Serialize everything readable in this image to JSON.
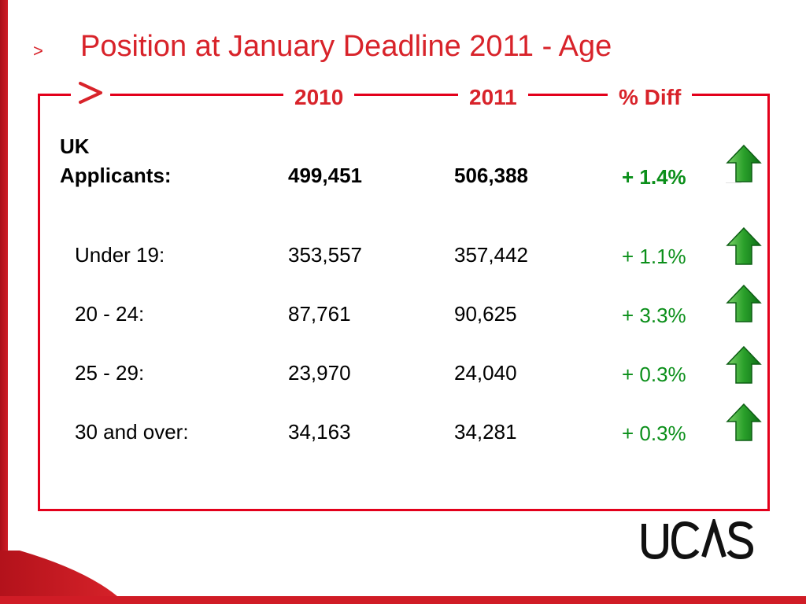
{
  "slide": {
    "bullet": ">",
    "title": "Position at January Deadline 2011 - Age"
  },
  "table": {
    "headers": {
      "col_2010": "2010",
      "col_2011": "2011",
      "col_diff": "% Diff"
    },
    "summary": {
      "label_line1": "UK",
      "label_line2": "Applicants:",
      "v2010": "499,451",
      "v2011": "506,388",
      "diff": "+ 1.4%"
    },
    "rows": [
      {
        "label": "Under 19:",
        "v2010": "353,557",
        "v2011": "357,442",
        "diff": "+ 1.1%"
      },
      {
        "label": "20 - 24:",
        "v2010": "87,761",
        "v2011": "90,625",
        "diff": "+ 3.3%"
      },
      {
        "label": "25 - 29:",
        "v2010": "23,970",
        "v2011": "24,040",
        "diff": "+ 0.3%"
      },
      {
        "label": "30 and over:",
        "v2010": "34,163",
        "v2011": "34,281",
        "diff": "+ 0.3%"
      }
    ]
  },
  "icons": {
    "trend": "up-arrow-icon"
  },
  "logo": {
    "text": "UCAS"
  },
  "colors": {
    "accent": "#d8232a",
    "frame": "#e3001b",
    "positive": "#0b8f1a"
  }
}
